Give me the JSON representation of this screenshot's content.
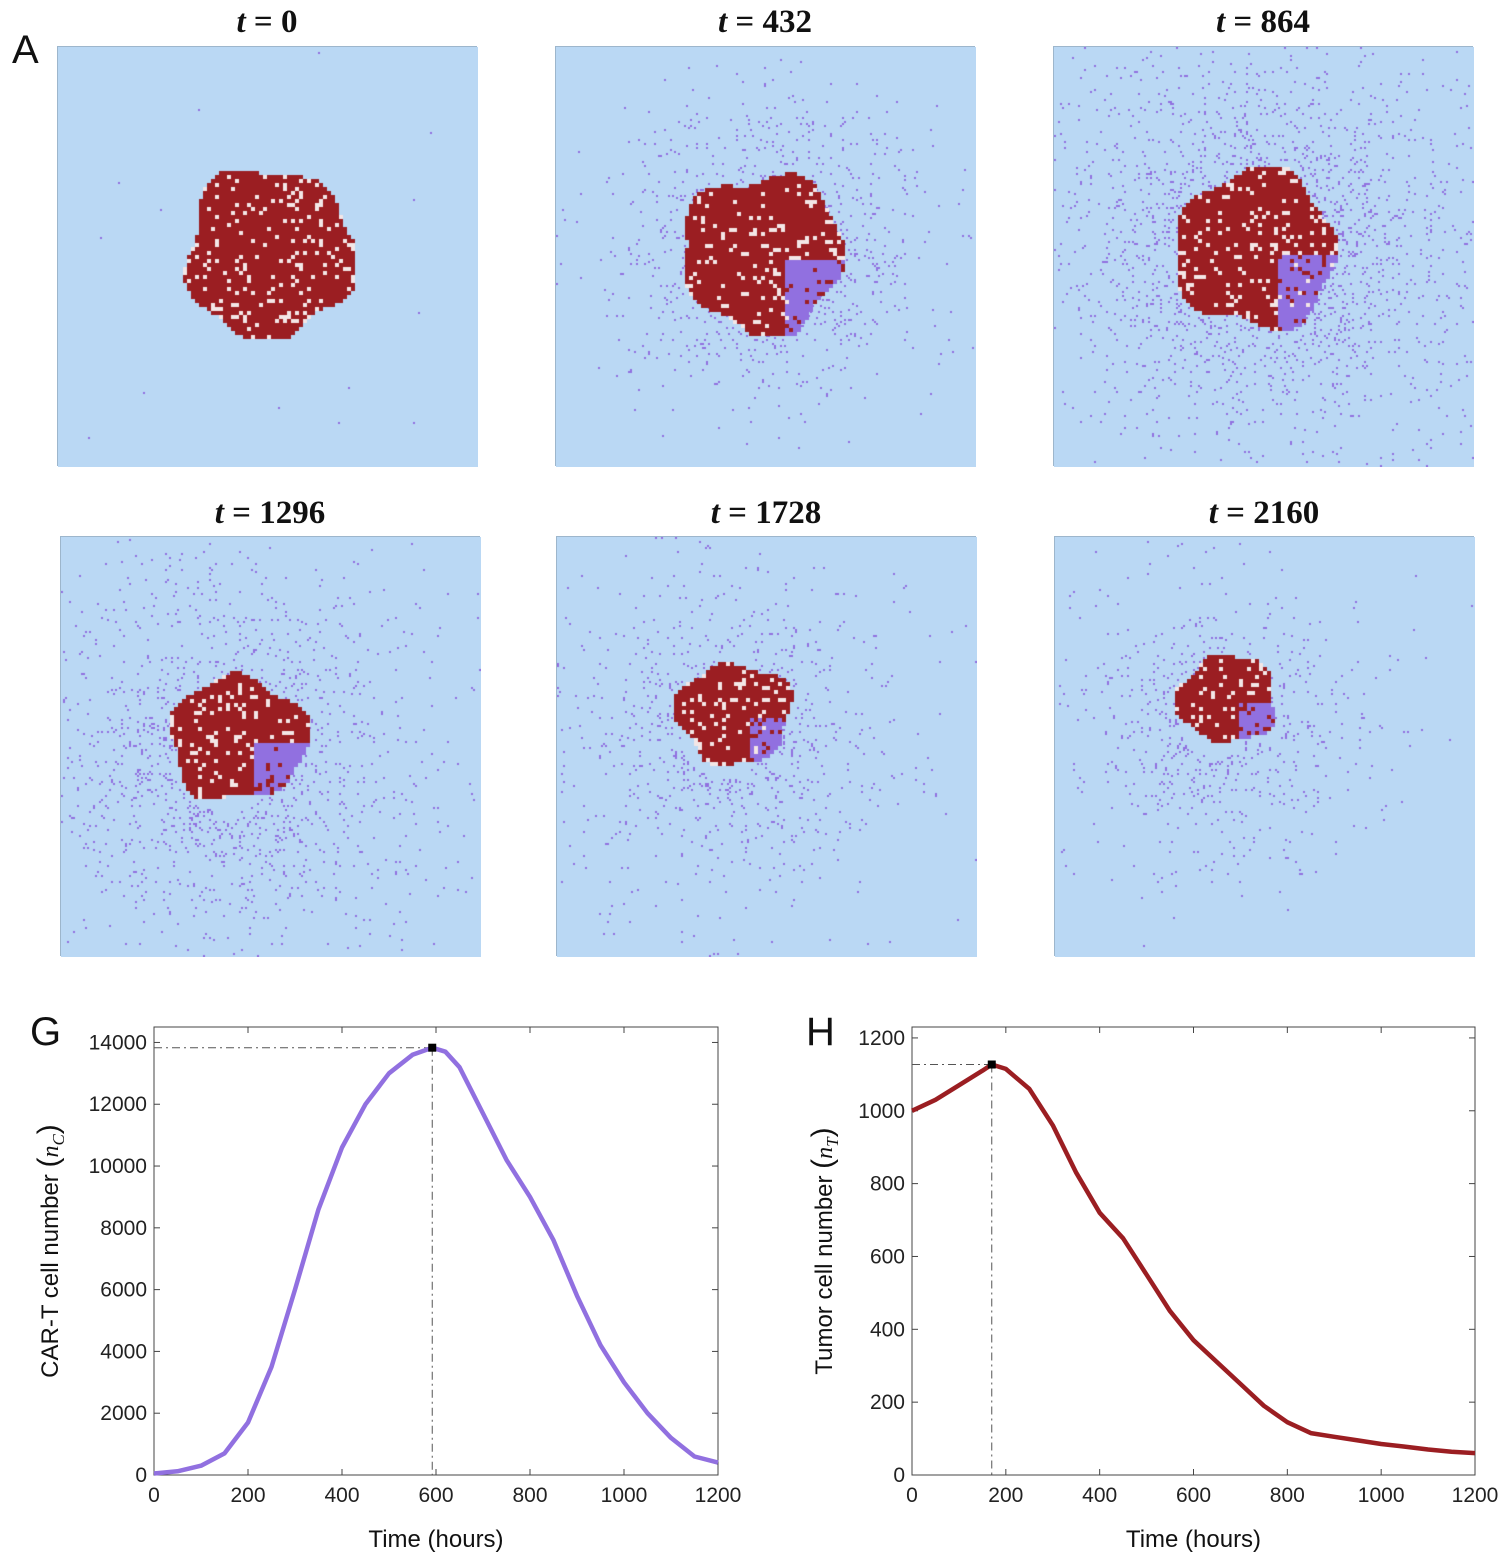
{
  "panels": {
    "A": {
      "letter": "A"
    },
    "G": {
      "letter": "G"
    },
    "H": {
      "letter": "H"
    }
  },
  "snapshots": [
    {
      "label_var": "t",
      "label_eq": " = ",
      "label_num": "0",
      "time": 0
    },
    {
      "label_var": "t",
      "label_eq": " = ",
      "label_num": "432",
      "time": 432
    },
    {
      "label_var": "t",
      "label_eq": " = ",
      "label_num": "864",
      "time": 864
    },
    {
      "label_var": "t",
      "label_eq": " = ",
      "label_num": "1296",
      "time": 1296
    },
    {
      "label_var": "t",
      "label_eq": " = ",
      "label_num": "1728",
      "time": 1728
    },
    {
      "label_var": "t",
      "label_eq": " = ",
      "label_num": "2160",
      "time": 2160
    }
  ],
  "colors": {
    "background": "#bad8f4",
    "tumor": "#9b1e22",
    "cart": "#9170e0",
    "cart_line": "#9170e0",
    "tumor_line": "#9b1e22"
  },
  "chart_data": [
    {
      "id": "G",
      "type": "line",
      "xlabel": "Time (hours)",
      "ylabel_text": "CAR-T cell number ",
      "ylabel_sym": "n",
      "ylabel_sub": "C",
      "xlim": [
        0,
        1200
      ],
      "ylim": [
        0,
        14500
      ],
      "xticks": [
        0,
        200,
        400,
        600,
        800,
        1000,
        1200
      ],
      "xtick_labels": [
        "0",
        "200",
        "400",
        "600",
        "800",
        "1000",
        "1200"
      ],
      "yticks": [
        0,
        2000,
        4000,
        6000,
        8000,
        10000,
        12000,
        14000
      ],
      "ytick_labels": [
        "0",
        "2000",
        "4000",
        "6000",
        "8000",
        "10000",
        "12000",
        "14000"
      ],
      "peak": {
        "x": 592,
        "y": 13830
      },
      "series": [
        {
          "name": "CAR-T cells",
          "x": [
            0,
            50,
            100,
            150,
            200,
            250,
            300,
            350,
            400,
            450,
            500,
            550,
            592,
            620,
            650,
            700,
            750,
            800,
            850,
            900,
            950,
            1000,
            1050,
            1100,
            1150,
            1200
          ],
          "y": [
            50,
            120,
            300,
            700,
            1700,
            3500,
            6000,
            8600,
            10600,
            12000,
            13000,
            13600,
            13830,
            13700,
            13200,
            11700,
            10200,
            9000,
            7600,
            5800,
            4200,
            3000,
            2000,
            1200,
            600,
            400
          ]
        }
      ]
    },
    {
      "id": "H",
      "type": "line",
      "xlabel": "Time (hours)",
      "ylabel_text": "Tumor cell number ",
      "ylabel_sym": "n",
      "ylabel_sub": "T",
      "xlim": [
        0,
        1200
      ],
      "ylim": [
        0,
        1230
      ],
      "xticks": [
        0,
        200,
        400,
        600,
        800,
        1000,
        1200
      ],
      "xtick_labels": [
        "0",
        "200",
        "400",
        "600",
        "800",
        "1000",
        "1200"
      ],
      "yticks": [
        0,
        200,
        400,
        600,
        800,
        1000,
        1200
      ],
      "ytick_labels": [
        "0",
        "200",
        "400",
        "600",
        "800",
        "1000",
        "1200"
      ],
      "peak": {
        "x": 170,
        "y": 1127
      },
      "series": [
        {
          "name": "Tumor cells",
          "x": [
            0,
            50,
            100,
            150,
            170,
            200,
            250,
            300,
            350,
            400,
            450,
            500,
            550,
            600,
            650,
            700,
            750,
            800,
            850,
            900,
            950,
            1000,
            1050,
            1100,
            1150,
            1200
          ],
          "y": [
            1000,
            1030,
            1070,
            1110,
            1127,
            1115,
            1060,
            960,
            830,
            720,
            650,
            550,
            450,
            370,
            310,
            250,
            190,
            145,
            115,
            105,
            95,
            85,
            78,
            70,
            64,
            60
          ]
        }
      ]
    }
  ]
}
